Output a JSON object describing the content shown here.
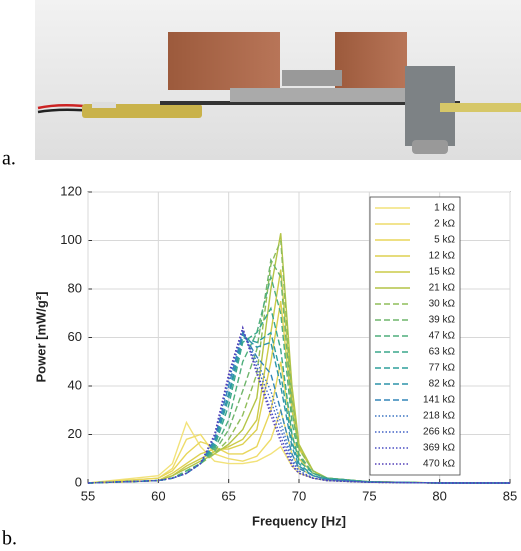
{
  "panel_labels": {
    "a": "a.",
    "b": "b."
  },
  "chart_data": {
    "type": "line",
    "xlabel": "Frequency [Hz]",
    "ylabel": "Power [mW/g²]",
    "x": [
      55,
      60,
      61,
      62,
      63,
      64,
      65,
      66,
      67,
      68,
      68.7,
      69.5,
      70,
      71,
      72,
      75,
      80,
      85
    ],
    "xlim": [
      55,
      85
    ],
    "xticks": [
      55,
      60,
      65,
      70,
      75,
      80,
      85
    ],
    "ylim": [
      0,
      120
    ],
    "yticks": [
      0,
      20,
      40,
      60,
      80,
      100,
      120
    ],
    "grid": true,
    "legend": "upper right",
    "series": [
      {
        "name": "1 kΩ",
        "color": "#f2e27a",
        "style": "solid",
        "values": [
          0,
          3,
          8,
          25,
          15,
          9,
          8,
          8,
          9,
          12,
          15,
          7,
          4,
          2,
          1,
          0.3,
          0,
          0
        ]
      },
      {
        "name": "2 kΩ",
        "color": "#eedc6a",
        "style": "solid",
        "values": [
          0,
          2,
          6,
          18,
          20,
          12,
          10,
          9,
          11,
          18,
          30,
          12,
          6,
          3,
          1.5,
          0.4,
          0,
          0
        ]
      },
      {
        "name": "5 kΩ",
        "color": "#e8d65a",
        "style": "solid",
        "values": [
          0,
          2,
          5,
          12,
          17,
          15,
          12,
          12,
          15,
          30,
          50,
          20,
          10,
          4,
          2,
          0.5,
          0,
          0
        ]
      },
      {
        "name": "12 kΩ",
        "color": "#ddd050",
        "style": "solid",
        "values": [
          0,
          1,
          4,
          8,
          12,
          14,
          14,
          16,
          22,
          50,
          75,
          30,
          14,
          5,
          2,
          0.5,
          0,
          0
        ]
      },
      {
        "name": "15 kΩ",
        "color": "#cccb48",
        "style": "solid",
        "values": [
          0,
          1,
          3,
          7,
          10,
          13,
          15,
          18,
          26,
          62,
          88,
          35,
          15,
          5,
          2,
          0.5,
          0,
          0
        ]
      },
      {
        "name": "21 kΩ",
        "color": "#b4c447",
        "style": "solid",
        "values": [
          0,
          1,
          3,
          6,
          9,
          12,
          16,
          22,
          35,
          80,
          103,
          40,
          16,
          5,
          2,
          0.5,
          0,
          0
        ]
      },
      {
        "name": "30 kΩ",
        "color": "#8fbd5a",
        "style": "dashed",
        "values": [
          0,
          1,
          2,
          5,
          8,
          12,
          18,
          28,
          45,
          90,
          100,
          35,
          14,
          5,
          2,
          0.5,
          0,
          0
        ]
      },
      {
        "name": "39 kΩ",
        "color": "#6fb56c",
        "style": "dashed",
        "values": [
          0,
          1,
          2,
          5,
          8,
          13,
          22,
          38,
          55,
          92,
          85,
          30,
          12,
          4,
          2,
          0.5,
          0,
          0
        ]
      },
      {
        "name": "47 kΩ",
        "color": "#4fae7c",
        "style": "dashed",
        "values": [
          0,
          1,
          2,
          5,
          8,
          14,
          26,
          50,
          62,
          85,
          70,
          25,
          11,
          4,
          2,
          0.5,
          0,
          0
        ]
      },
      {
        "name": "63 kΩ",
        "color": "#3aa78c",
        "style": "dashed",
        "values": [
          0,
          1,
          2,
          4,
          8,
          15,
          32,
          58,
          62,
          72,
          55,
          20,
          9,
          4,
          2,
          0.5,
          0,
          0
        ]
      },
      {
        "name": "77 kΩ",
        "color": "#2e9f9c",
        "style": "dashed",
        "values": [
          0,
          1,
          2,
          4,
          8,
          16,
          35,
          60,
          58,
          62,
          45,
          17,
          8,
          3,
          1.5,
          0.4,
          0,
          0
        ]
      },
      {
        "name": "82 kΩ",
        "color": "#2d94aa",
        "style": "dashed",
        "values": [
          0,
          1,
          2,
          4,
          8,
          17,
          37,
          61,
          56,
          58,
          40,
          15,
          7,
          3,
          1.5,
          0.4,
          0,
          0
        ]
      },
      {
        "name": "141 kΩ",
        "color": "#3486b8",
        "style": "dashed",
        "values": [
          0,
          1,
          2,
          4,
          8,
          18,
          40,
          62,
          52,
          45,
          30,
          12,
          6,
          3,
          1.5,
          0.4,
          0,
          0
        ]
      },
      {
        "name": "218 kΩ",
        "color": "#3c75c2",
        "style": "dotted",
        "values": [
          0,
          1,
          2,
          4,
          8,
          19,
          42,
          63,
          50,
          38,
          25,
          10,
          5,
          2,
          1,
          0.3,
          0,
          0
        ]
      },
      {
        "name": "266 kΩ",
        "color": "#4262c6",
        "style": "dotted",
        "values": [
          0,
          1,
          2,
          4,
          8,
          19,
          43,
          63,
          48,
          34,
          22,
          9,
          5,
          2,
          1,
          0.3,
          0,
          0
        ]
      },
      {
        "name": "369 kΩ",
        "color": "#4a4fc4",
        "style": "dotted",
        "values": [
          0,
          1,
          2,
          4,
          8,
          20,
          44,
          64,
          46,
          30,
          19,
          8,
          4,
          2,
          1,
          0.3,
          0,
          0
        ]
      },
      {
        "name": "470 kΩ",
        "color": "#5440b8",
        "style": "dotted",
        "values": [
          0,
          1,
          2,
          4,
          8,
          20,
          45,
          64,
          45,
          28,
          17,
          7,
          4,
          2,
          1,
          0.3,
          0,
          0
        ]
      }
    ]
  }
}
